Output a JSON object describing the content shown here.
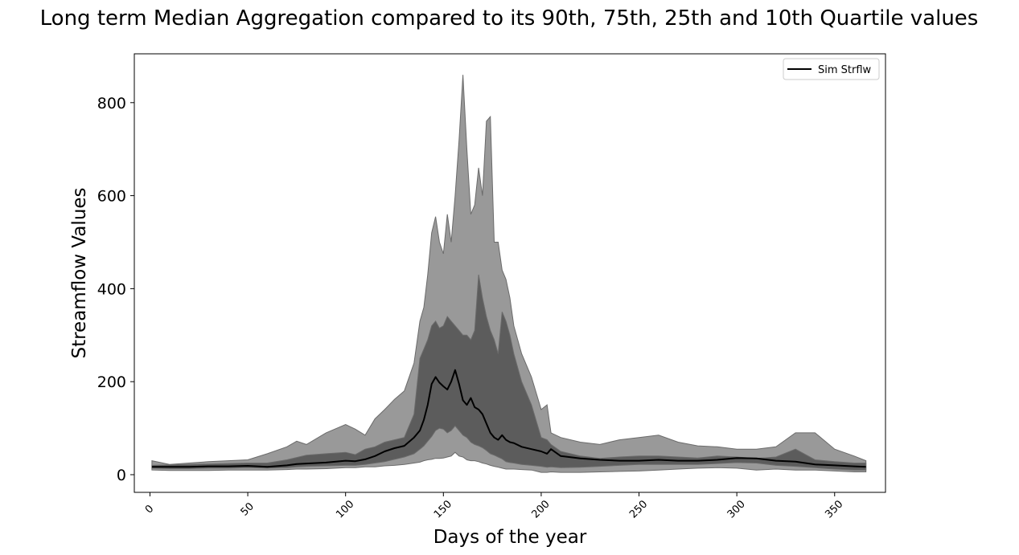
{
  "chart_data": {
    "type": "area",
    "title": "Long term Median Aggregation compared to its 90th, 75th, 25th and 10th Quartile values",
    "xlabel": "Days of the year",
    "ylabel": "Streamflow Values",
    "xlim": [
      -8,
      376
    ],
    "ylim": [
      -38,
      905
    ],
    "xticks": [
      0,
      50,
      100,
      150,
      200,
      250,
      300,
      350
    ],
    "yticks": [
      0,
      200,
      400,
      600,
      800
    ],
    "grid": false,
    "legend": {
      "position": "top-right",
      "entries": [
        "Sim Strflw"
      ]
    },
    "colors": {
      "band_outer": "#999999",
      "band_inner": "#5c5c5c",
      "band_edge": "#6b6b6b",
      "median": "#000000"
    },
    "x": [
      1,
      10,
      20,
      30,
      40,
      50,
      60,
      70,
      75,
      80,
      90,
      100,
      105,
      110,
      115,
      120,
      125,
      130,
      135,
      138,
      140,
      142,
      144,
      146,
      148,
      150,
      152,
      154,
      156,
      158,
      160,
      162,
      164,
      166,
      168,
      170,
      172,
      174,
      176,
      178,
      180,
      182,
      184,
      186,
      190,
      195,
      200,
      203,
      205,
      210,
      220,
      230,
      240,
      250,
      260,
      270,
      280,
      290,
      300,
      310,
      320,
      330,
      340,
      350,
      360,
      366
    ],
    "series": [
      {
        "name": "Sim Strflw",
        "values": [
          17,
          17,
          17,
          18,
          18,
          19,
          17,
          20,
          23,
          24,
          26,
          30,
          29,
          33,
          40,
          50,
          57,
          62,
          80,
          95,
          118,
          150,
          195,
          210,
          198,
          190,
          183,
          200,
          225,
          195,
          160,
          150,
          165,
          145,
          140,
          130,
          110,
          90,
          80,
          75,
          85,
          75,
          70,
          68,
          60,
          55,
          50,
          45,
          55,
          40,
          35,
          32,
          30,
          30,
          32,
          30,
          30,
          32,
          36,
          35,
          30,
          28,
          22,
          20,
          18,
          17
        ]
      }
    ],
    "bands": [
      {
        "lower_percentile": 10,
        "upper_percentile": 90,
        "lower": [
          10,
          9,
          9,
          9,
          10,
          10,
          10,
          11,
          12,
          12,
          13,
          15,
          15,
          17,
          17,
          19,
          20,
          22,
          25,
          27,
          30,
          32,
          33,
          35,
          35,
          36,
          38,
          40,
          48,
          40,
          38,
          32,
          30,
          30,
          28,
          25,
          23,
          20,
          18,
          16,
          14,
          12,
          12,
          12,
          11,
          10,
          5,
          5,
          6,
          5,
          5,
          6,
          7,
          8,
          10,
          12,
          14,
          15,
          14,
          10,
          12,
          10,
          10,
          8,
          6,
          6
        ],
        "upper": [
          30,
          22,
          25,
          28,
          30,
          32,
          45,
          60,
          72,
          65,
          90,
          108,
          98,
          85,
          120,
          140,
          162,
          180,
          240,
          330,
          360,
          430,
          520,
          555,
          500,
          475,
          560,
          500,
          600,
          720,
          860,
          700,
          560,
          580,
          660,
          600,
          760,
          770,
          500,
          500,
          440,
          420,
          380,
          320,
          260,
          210,
          140,
          150,
          90,
          80,
          70,
          65,
          75,
          80,
          85,
          70,
          62,
          60,
          55,
          55,
          60,
          90,
          90,
          55,
          40,
          30
        ]
      },
      {
        "lower_percentile": 25,
        "upper_percentile": 75,
        "lower": [
          14,
          13,
          13,
          14,
          14,
          15,
          14,
          15,
          17,
          18,
          19,
          20,
          20,
          22,
          25,
          28,
          33,
          38,
          45,
          55,
          62,
          72,
          82,
          95,
          100,
          98,
          90,
          95,
          105,
          95,
          85,
          80,
          70,
          65,
          62,
          58,
          52,
          45,
          42,
          38,
          34,
          28,
          26,
          25,
          22,
          20,
          18,
          16,
          17,
          15,
          16,
          18,
          20,
          22,
          22,
          22,
          22,
          24,
          26,
          25,
          20,
          18,
          15,
          12,
          10,
          10
        ],
        "upper": [
          20,
          21,
          22,
          23,
          24,
          25,
          25,
          32,
          37,
          42,
          45,
          48,
          43,
          55,
          60,
          70,
          75,
          80,
          130,
          250,
          270,
          290,
          320,
          330,
          315,
          320,
          340,
          330,
          320,
          310,
          300,
          300,
          290,
          310,
          430,
          380,
          340,
          310,
          290,
          260,
          350,
          330,
          300,
          260,
          200,
          150,
          80,
          75,
          65,
          50,
          40,
          35,
          38,
          40,
          40,
          38,
          36,
          40,
          38,
          35,
          38,
          55,
          32,
          28,
          25,
          25
        ]
      }
    ]
  }
}
